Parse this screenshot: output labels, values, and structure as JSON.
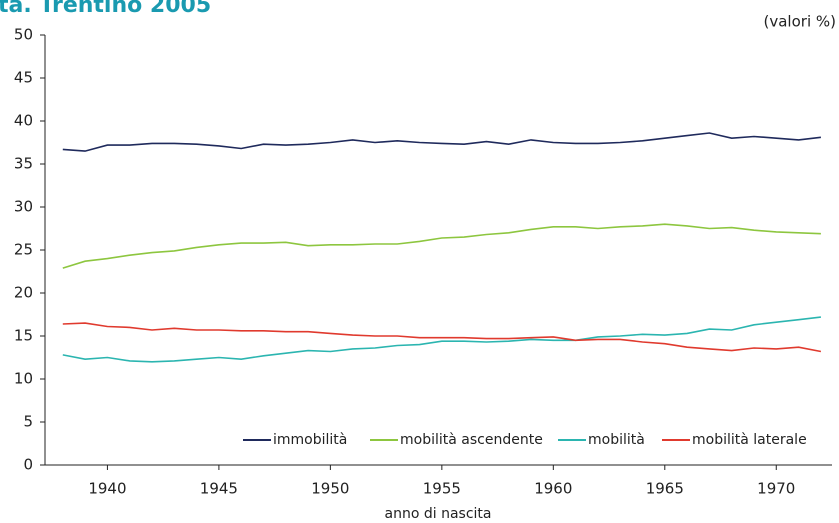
{
  "chart_data": {
    "type": "line",
    "title": "ta. Trentino 2005",
    "annotation": "(valori %)",
    "x_label": "anno di nascita",
    "x": [
      1938,
      1939,
      1940,
      1941,
      1942,
      1943,
      1944,
      1945,
      1946,
      1947,
      1948,
      1949,
      1950,
      1951,
      1952,
      1953,
      1954,
      1955,
      1956,
      1957,
      1958,
      1959,
      1960,
      1961,
      1962,
      1963,
      1964,
      1965,
      1966,
      1967,
      1968,
      1969,
      1970,
      1971,
      1972
    ],
    "series": [
      {
        "name": "immobilità",
        "color": "#1f2a5c",
        "values": [
          36.7,
          36.5,
          37.2,
          37.2,
          37.4,
          37.4,
          37.3,
          37.1,
          36.8,
          37.3,
          37.2,
          37.3,
          37.5,
          37.8,
          37.5,
          37.7,
          37.5,
          37.4,
          37.3,
          37.6,
          37.3,
          37.8,
          37.5,
          37.4,
          37.4,
          37.5,
          37.7,
          38.0,
          38.3,
          38.6,
          38.0,
          38.2,
          38.0,
          37.8,
          38.1
        ]
      },
      {
        "name": "mobilità ascendente",
        "color": "#8dc63f",
        "values": [
          22.9,
          23.7,
          24.0,
          24.4,
          24.7,
          24.9,
          25.3,
          25.6,
          25.8,
          25.8,
          25.9,
          25.5,
          25.6,
          25.6,
          25.7,
          25.7,
          26.0,
          26.4,
          26.5,
          26.8,
          27.0,
          27.4,
          27.7,
          27.7,
          27.5,
          27.7,
          27.8,
          28.0,
          27.8,
          27.5,
          27.6,
          27.3,
          27.1,
          27.0,
          26.9
        ]
      },
      {
        "name": "mobilità",
        "color": "#2bb5b0",
        "values": [
          12.8,
          12.3,
          12.5,
          12.1,
          12.0,
          12.1,
          12.3,
          12.5,
          12.3,
          12.7,
          13.0,
          13.3,
          13.2,
          13.5,
          13.6,
          13.9,
          14.0,
          14.4,
          14.4,
          14.3,
          14.4,
          14.6,
          14.5,
          14.5,
          14.9,
          15.0,
          15.2,
          15.1,
          15.3,
          15.8,
          15.7,
          16.3,
          16.6,
          16.9,
          17.2
        ]
      },
      {
        "name": "mobilità laterale",
        "color": "#e03a2e",
        "values": [
          16.4,
          16.5,
          16.1,
          16.0,
          15.7,
          15.9,
          15.7,
          15.7,
          15.6,
          15.6,
          15.5,
          15.5,
          15.3,
          15.1,
          15.0,
          15.0,
          14.8,
          14.8,
          14.8,
          14.7,
          14.7,
          14.8,
          14.9,
          14.5,
          14.6,
          14.6,
          14.3,
          14.1,
          13.7,
          13.5,
          13.3,
          13.6,
          13.5,
          13.7,
          13.2
        ]
      }
    ],
    "xlim": [
      1937.2,
      1972.5
    ],
    "xticks": [
      1940,
      1945,
      1950,
      1955,
      1960,
      1965,
      1970
    ],
    "ylim": [
      0,
      50
    ],
    "yticks": [
      0,
      5,
      10,
      15,
      20,
      25,
      30,
      35,
      40,
      45,
      50
    ]
  }
}
